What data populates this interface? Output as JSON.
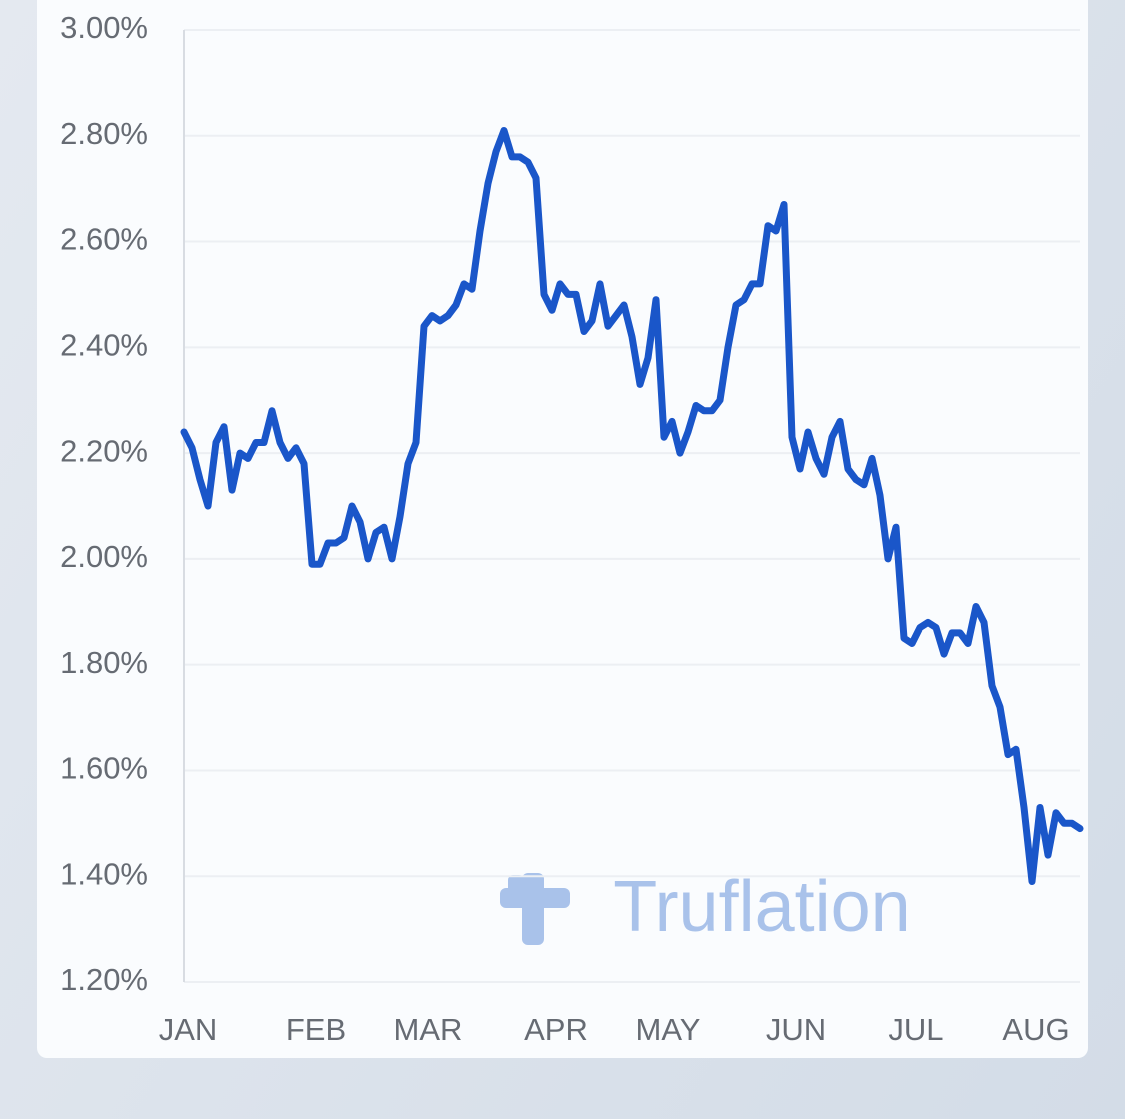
{
  "chart_data": {
    "type": "line",
    "watermark": "Truflation",
    "categories": [
      "JAN",
      null,
      null,
      null,
      null,
      null,
      null,
      null,
      null,
      null,
      null,
      null,
      null,
      null,
      null,
      null,
      "FEB",
      null,
      null,
      null,
      null,
      null,
      null,
      null,
      null,
      null,
      null,
      null,
      null,
      null,
      "MAR",
      null,
      null,
      null,
      null,
      null,
      null,
      null,
      null,
      null,
      null,
      null,
      null,
      null,
      null,
      null,
      "APR",
      null,
      null,
      null,
      null,
      null,
      null,
      null,
      null,
      null,
      null,
      null,
      null,
      null,
      "MAY",
      null,
      null,
      null,
      null,
      null,
      null,
      null,
      null,
      null,
      null,
      null,
      null,
      null,
      null,
      null,
      "JUN",
      null,
      null,
      null,
      null,
      null,
      null,
      null,
      null,
      null,
      null,
      null,
      null,
      null,
      null,
      "JUL",
      null,
      null,
      null,
      null,
      null,
      null,
      null,
      null,
      null,
      null,
      null,
      null,
      null,
      null,
      "AUG",
      null,
      null,
      null,
      null,
      null,
      null
    ],
    "values": [
      2.24,
      2.21,
      2.15,
      2.1,
      2.22,
      2.25,
      2.13,
      2.2,
      2.19,
      2.22,
      2.22,
      2.28,
      2.22,
      2.19,
      2.21,
      2.18,
      1.99,
      1.99,
      2.03,
      2.03,
      2.04,
      2.1,
      2.07,
      2.0,
      2.05,
      2.06,
      2.0,
      2.08,
      2.18,
      2.22,
      2.44,
      2.46,
      2.45,
      2.46,
      2.48,
      2.52,
      2.51,
      2.62,
      2.71,
      2.77,
      2.81,
      2.76,
      2.76,
      2.75,
      2.72,
      2.5,
      2.47,
      2.52,
      2.5,
      2.5,
      2.43,
      2.45,
      2.52,
      2.44,
      2.46,
      2.48,
      2.42,
      2.33,
      2.38,
      2.49,
      2.23,
      2.26,
      2.2,
      2.24,
      2.29,
      2.28,
      2.28,
      2.3,
      2.4,
      2.48,
      2.49,
      2.52,
      2.52,
      2.63,
      2.62,
      2.67,
      2.23,
      2.17,
      2.24,
      2.19,
      2.16,
      2.23,
      2.26,
      2.17,
      2.15,
      2.14,
      2.19,
      2.12,
      2.0,
      2.06,
      1.85,
      1.84,
      1.87,
      1.88,
      1.87,
      1.82,
      1.86,
      1.86,
      1.84,
      1.91,
      1.88,
      1.76,
      1.72,
      1.63,
      1.64,
      1.53,
      1.39,
      1.53,
      1.44,
      1.52,
      1.5,
      1.5,
      1.49
    ],
    "color": "#1a56c9",
    "ylim": [
      1.2,
      3.0
    ],
    "yticks": [
      {
        "value": 1.2,
        "label": "1.20%"
      },
      {
        "value": 1.4,
        "label": "1.40%"
      },
      {
        "value": 1.6,
        "label": "1.60%"
      },
      {
        "value": 1.8,
        "label": "1.80%"
      },
      {
        "value": 2.0,
        "label": "2.00%"
      },
      {
        "value": 2.2,
        "label": "2.20%"
      },
      {
        "value": 2.4,
        "label": "2.40%"
      },
      {
        "value": 2.6,
        "label": "2.60%"
      },
      {
        "value": 2.8,
        "label": "2.80%"
      },
      {
        "value": 3.0,
        "label": "3.00%"
      }
    ],
    "grid": true
  }
}
